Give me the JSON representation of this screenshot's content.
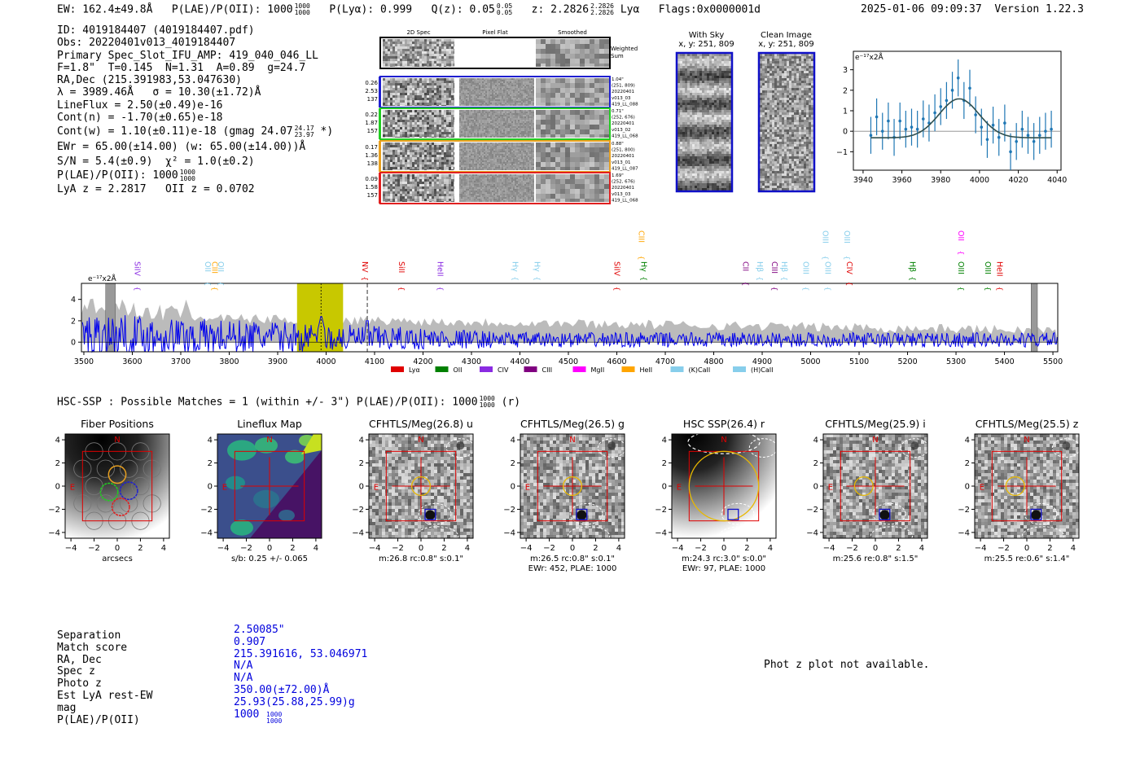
{
  "header": {
    "ew": "EW: 162.4±49.8Å",
    "plae_label": "P(LAE)/P(OII): 1000",
    "plae_hi": "1000",
    "plae_lo": "1000",
    "plya": "P(Lyα): 0.999",
    "qz_label": "Q(z): 0.05",
    "qz_hi": "0.05",
    "qz_lo": "0.05",
    "z_label": "z: 2.2826",
    "z_hi": "2.2826",
    "z_lo": "2.2826",
    "line": "Lyα",
    "flags": "Flags:0x0000001d",
    "timestamp": "2025-01-06 09:09:37",
    "version": "Version 1.22.3"
  },
  "info_lines": [
    "ID: 4019184407 (4019184407.pdf)",
    "Obs: 20220401v013_4019184407",
    "Primary Spec_Slot_IFU_AMP: 419_040_046_LL",
    "F=1.8\"  T=0.145  N=1.31  A=0.89  g=24.7",
    "RA,Dec (215.391983,53.047630)",
    "λ = 3989.46Å   σ = 10.30(±1.72)Å",
    "LineFlux = 2.50(±0.49)e-16",
    "Cont(n) = -1.70(±0.65)e-18"
  ],
  "info_contw": "Cont(w) = 1.10(±0.11)e-18 (gmag 24.07",
  "info_contw_hi": "24.17",
  "info_contw_lo": "23.97",
  "info_contw_tail": "*)",
  "info_lines2": [
    "EWr = 65.00(±14.00) (w: 65.00(±14.00))Å",
    "S/N = 5.4(±0.9)  χ² = 1.0(±0.2)"
  ],
  "info_plae": "P(LAE)/P(OII): 1000",
  "info_plae_hi": "1000",
  "info_plae_lo": "1000",
  "info_lyaz": "LyA z = 2.2817   OII z = 0.0702",
  "cutouts": {
    "col_titles": [
      "2D Spec",
      "Pixel Flat",
      "Smoothed"
    ],
    "weighted_label": "Weighted Sum",
    "rows": [
      {
        "nums": [
          "0.26",
          "2.53",
          "137"
        ],
        "meta": [
          "1.04\"",
          "(251, 809)",
          "20220401",
          "v013_03",
          "419_LL_088"
        ],
        "color": "#1f1fd0"
      },
      {
        "nums": [
          "0.22",
          "1.87",
          "157"
        ],
        "meta": [
          "0.71\"",
          "(252, 676)",
          "20220401",
          "v013_02",
          "419_LL_068"
        ],
        "color": "#22cc22"
      },
      {
        "nums": [
          "0.17",
          "1.36",
          "138"
        ],
        "meta": [
          "0.88\"",
          "(251, 800)",
          "20220401",
          "v013_01",
          "419_LL_087"
        ],
        "color": "#e8a020"
      },
      {
        "nums": [
          "0.09",
          "1.58",
          "157"
        ],
        "meta": [
          "1.69\"",
          "(252, 676)",
          "20220401",
          "v013_03",
          "419_LL_068"
        ],
        "color": "#e02020"
      }
    ]
  },
  "sky": {
    "with_sky_title": "With Sky",
    "with_sky_xy": "x, y: 251, 809",
    "clean_title": "Clean Image",
    "clean_xy": "x, y: 251, 809"
  },
  "fit_plot": {
    "unit_label": "e⁻¹⁷x2Å",
    "xticks": [
      "3940",
      "3960",
      "3980",
      "4000",
      "4020",
      "4040"
    ],
    "yticks": [
      "3",
      "2",
      "1",
      "0",
      "−1"
    ]
  },
  "spectrum": {
    "unit_label": "e⁻¹⁷x2Å",
    "xticks": [
      "3500",
      "3600",
      "3700",
      "3800",
      "3900",
      "4000",
      "4100",
      "4200",
      "4300",
      "4400",
      "4500",
      "4600",
      "4700",
      "4800",
      "4900",
      "5000",
      "5100",
      "5200",
      "5300",
      "5400",
      "5500"
    ],
    "yticks": [
      "4",
      "2",
      "0"
    ],
    "legend": [
      {
        "label": "Lyα",
        "color": "#e00000"
      },
      {
        "label": "OII",
        "color": "#008000"
      },
      {
        "label": "CIV",
        "color": "#8a2be2"
      },
      {
        "label": "CIII",
        "color": "#800080"
      },
      {
        "label": "MgII",
        "color": "#ff00ff"
      },
      {
        "label": "HeII",
        "color": "#ffa500"
      },
      {
        "label": "(K)CaII",
        "color": "#87ceeb"
      },
      {
        "label": "(H)CaII",
        "color": "#87ceeb"
      }
    ],
    "lines": [
      {
        "label": "SiIV",
        "x": 3600,
        "color": "#8a2be2",
        "row": 1
      },
      {
        "label": "OII",
        "x": 3745,
        "color": "#87ceeb",
        "row": 1
      },
      {
        "label": "CIII",
        "x": 3760,
        "color": "#ffa500",
        "row": 1
      },
      {
        "label": "OII",
        "x": 3772,
        "color": "#87ceeb",
        "row": 1
      },
      {
        "label": "NV",
        "x": 4070,
        "color": "#e00000",
        "row": 1
      },
      {
        "label": "SiII",
        "x": 4145,
        "color": "#e00000",
        "row": 1
      },
      {
        "label": "HeII",
        "x": 4225,
        "color": "#8a2be2",
        "row": 1
      },
      {
        "label": "Hγ",
        "x": 4380,
        "color": "#87ceeb",
        "row": 1
      },
      {
        "label": "Hγ",
        "x": 4425,
        "color": "#87ceeb",
        "row": 1
      },
      {
        "label": "SiIV",
        "x": 4590,
        "color": "#e00000",
        "row": 1
      },
      {
        "label": "CIII",
        "x": 4640,
        "color": "#ffa500",
        "row": 0
      },
      {
        "label": "Hγ",
        "x": 4645,
        "color": "#008000",
        "row": 1
      },
      {
        "label": "CII",
        "x": 4855,
        "color": "#800080",
        "row": 1
      },
      {
        "label": "Hβ",
        "x": 4885,
        "color": "#87ceeb",
        "row": 1
      },
      {
        "label": "CIII",
        "x": 4915,
        "color": "#800080",
        "row": 1
      },
      {
        "label": "Hβ",
        "x": 4935,
        "color": "#87ceeb",
        "row": 1
      },
      {
        "label": "OIII",
        "x": 4980,
        "color": "#87ceeb",
        "row": 1
      },
      {
        "label": "OIII",
        "x": 5020,
        "color": "#87ceeb",
        "row": 0
      },
      {
        "label": "OIII",
        "x": 5025,
        "color": "#87ceeb",
        "row": 1
      },
      {
        "label": "OIII",
        "x": 5065,
        "color": "#87ceeb",
        "row": 0
      },
      {
        "label": "CIV",
        "x": 5070,
        "color": "#e00000",
        "row": 1
      },
      {
        "label": "Hβ",
        "x": 5200,
        "color": "#008000",
        "row": 1
      },
      {
        "label": "OII",
        "x": 5300,
        "color": "#ff00ff",
        "row": 0
      },
      {
        "label": "OIII",
        "x": 5300,
        "color": "#008000",
        "row": 1
      },
      {
        "label": "OIII",
        "x": 5355,
        "color": "#008000",
        "row": 1
      },
      {
        "label": "HeII",
        "x": 5380,
        "color": "#e00000",
        "row": 1
      }
    ]
  },
  "matches_line": "HSC-SSP : Possible Matches = 1 (within +/- 3\")  P(LAE)/P(OII): 1000",
  "matches_hi": "1000",
  "matches_lo": "1000",
  "matches_tail": "(r)",
  "imaging": {
    "ticks": [
      "−4",
      "−2",
      "0",
      "2",
      "4"
    ],
    "panels": [
      {
        "title": "Fiber Positions",
        "caption": "arcsecs",
        "caption2": "",
        "style": "fiber"
      },
      {
        "title": "Lineflux Map",
        "caption": "s/b: 0.25 +/- 0.065",
        "caption2": "",
        "style": "lineflux"
      },
      {
        "title": "CFHTLS/Meg(26.8) u",
        "caption": "m:26.8 rc:0.8\"  s:0.1\"",
        "caption2": "",
        "style": "noise"
      },
      {
        "title": "CFHTLS/Meg(26.5) g",
        "caption": "m:26.5 rc:0.8\"  s:0.1\"",
        "caption2": "EWr: 452, PLAE: 1000",
        "style": "noise"
      },
      {
        "title": "HSC SSP(26.4) r",
        "caption": "m:24.3 rc:3.0\"  s:0.0\"",
        "caption2": "EWr: 97, PLAE: 1000",
        "style": "hsc"
      },
      {
        "title": "CFHTLS/Meg(25.9) i",
        "caption": "m:25.6  re:0.8\"  s:1.5\"",
        "caption2": "",
        "style": "noise"
      },
      {
        "title": "CFHTLS/Meg(25.5) z",
        "caption": "m:25.5  re:0.6\"  s:1.4\"",
        "caption2": "",
        "style": "noise"
      }
    ],
    "north": "N",
    "east": "E"
  },
  "summary": {
    "labels": [
      "Separation",
      "Match score",
      "RA, Dec",
      "Spec z",
      "Photo z",
      "Est LyA rest-EW",
      "mag",
      "P(LAE)/P(OII)"
    ],
    "values": [
      "2.50085\"",
      "0.907",
      "215.391616, 53.046971",
      "N/A",
      "N/A",
      "350.00(±72.00)Å",
      "25.93(25.88,25.99)g",
      "1000"
    ],
    "plae_hi": "1000",
    "plae_lo": "1000",
    "photz_note": "Phot z plot not available."
  },
  "chart_data": [
    {
      "type": "scatter",
      "title": "",
      "xlabel": "",
      "ylabel": "e⁻¹⁷x2Å",
      "xlim": [
        3935,
        4042
      ],
      "ylim": [
        -1.9,
        3.9
      ],
      "series": [
        {
          "x": [
            3944,
            3947,
            3950,
            3953,
            3956,
            3959,
            3962,
            3965,
            3968,
            3971,
            3974,
            3977,
            3980,
            3983,
            3986,
            3989,
            3992,
            3995,
            3998,
            4001,
            4004,
            4007,
            4010,
            4013,
            4016,
            4019,
            4022,
            4025,
            4028,
            4031,
            4034,
            4037
          ],
          "y": [
            -0.2,
            0.7,
            0.0,
            0.5,
            -0.3,
            0.5,
            0.1,
            0.2,
            0.1,
            0.6,
            0.4,
            0.9,
            1.2,
            1.5,
            2.0,
            2.6,
            1.5,
            2.1,
            0.8,
            0.2,
            -0.4,
            0.3,
            -0.3,
            0.4,
            -1.0,
            -0.5,
            0.1,
            -0.2,
            -0.5,
            -0.2,
            0.0,
            0.1
          ]
        }
      ],
      "fit": {
        "amplitude": 1.9,
        "center": 3989.5,
        "sigma": 10.3,
        "offset": -0.32
      }
    },
    {
      "type": "line",
      "title": "",
      "xlabel": "",
      "ylabel": "e⁻¹⁷x2Å",
      "xlim": [
        3495,
        5510
      ],
      "ylim": [
        -0.9,
        5.5
      ],
      "highlight_region": [
        3940,
        4035
      ],
      "line_center": 3989.5,
      "secondary_marker": 4085,
      "masked": [
        [
          3545,
          3565
        ],
        [
          5455,
          5468
        ]
      ],
      "series": [
        {
          "name": "",
          "color": "#0000ee",
          "kind": "spectrum",
          "noise_start": 4.2,
          "noise_end": 1.4,
          "peak": {
            "x": 3990,
            "y": 2.6
          }
        },
        {
          "name": "",
          "color": "#bbbbbb",
          "kind": "error",
          "start": 2.4,
          "end": 1.1
        }
      ]
    }
  ]
}
